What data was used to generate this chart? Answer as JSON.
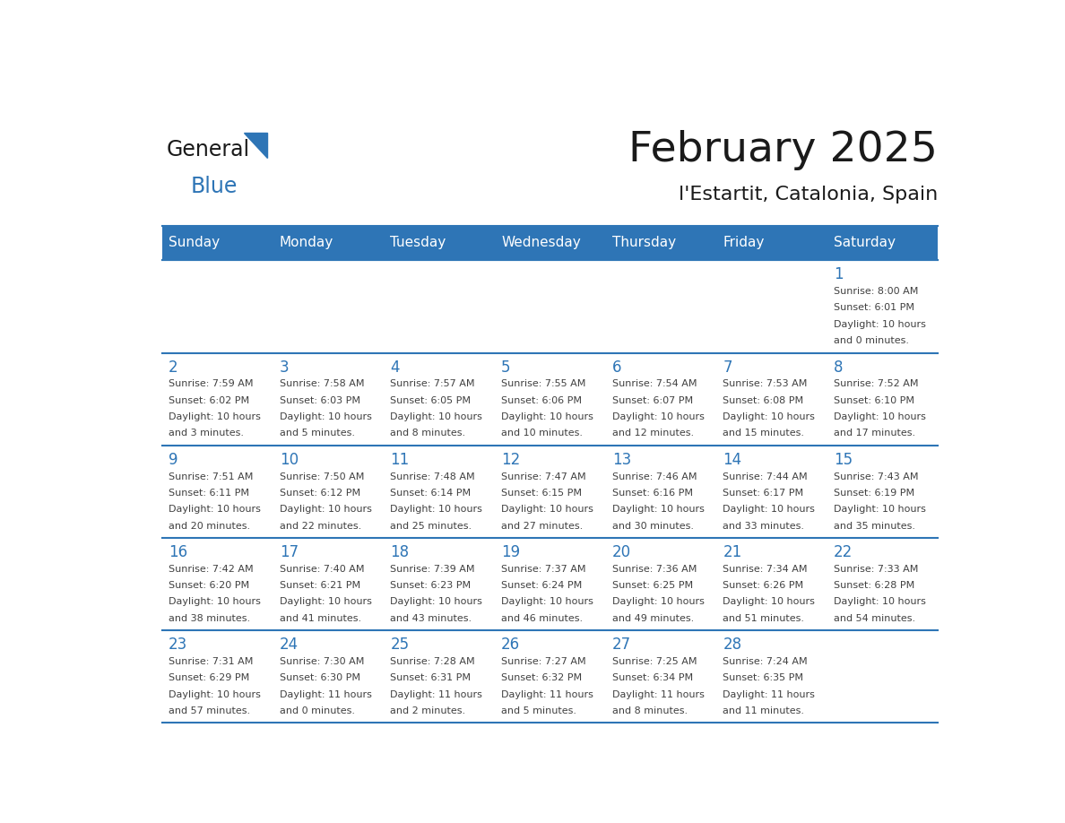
{
  "title": "February 2025",
  "subtitle": "l'Estartit, Catalonia, Spain",
  "days_of_week": [
    "Sunday",
    "Monday",
    "Tuesday",
    "Wednesday",
    "Thursday",
    "Friday",
    "Saturday"
  ],
  "header_bg": "#2E75B6",
  "header_text": "#FFFFFF",
  "cell_bg": "#FFFFFF",
  "border_color": "#2E75B6",
  "day_num_color": "#2E75B6",
  "info_color": "#404040",
  "title_color": "#1a1a1a",
  "subtitle_color": "#1a1a1a",
  "logo_general_color": "#1a1a1a",
  "logo_blue_color": "#2E75B6",
  "num_rows": 5,
  "num_cols": 7,
  "calendar_data": [
    {
      "day": 1,
      "row": 0,
      "col": 6,
      "sunrise": "8:00 AM",
      "sunset": "6:01 PM",
      "daylight_hours": 10,
      "daylight_minutes": 0
    },
    {
      "day": 2,
      "row": 1,
      "col": 0,
      "sunrise": "7:59 AM",
      "sunset": "6:02 PM",
      "daylight_hours": 10,
      "daylight_minutes": 3
    },
    {
      "day": 3,
      "row": 1,
      "col": 1,
      "sunrise": "7:58 AM",
      "sunset": "6:03 PM",
      "daylight_hours": 10,
      "daylight_minutes": 5
    },
    {
      "day": 4,
      "row": 1,
      "col": 2,
      "sunrise": "7:57 AM",
      "sunset": "6:05 PM",
      "daylight_hours": 10,
      "daylight_minutes": 8
    },
    {
      "day": 5,
      "row": 1,
      "col": 3,
      "sunrise": "7:55 AM",
      "sunset": "6:06 PM",
      "daylight_hours": 10,
      "daylight_minutes": 10
    },
    {
      "day": 6,
      "row": 1,
      "col": 4,
      "sunrise": "7:54 AM",
      "sunset": "6:07 PM",
      "daylight_hours": 10,
      "daylight_minutes": 12
    },
    {
      "day": 7,
      "row": 1,
      "col": 5,
      "sunrise": "7:53 AM",
      "sunset": "6:08 PM",
      "daylight_hours": 10,
      "daylight_minutes": 15
    },
    {
      "day": 8,
      "row": 1,
      "col": 6,
      "sunrise": "7:52 AM",
      "sunset": "6:10 PM",
      "daylight_hours": 10,
      "daylight_minutes": 17
    },
    {
      "day": 9,
      "row": 2,
      "col": 0,
      "sunrise": "7:51 AM",
      "sunset": "6:11 PM",
      "daylight_hours": 10,
      "daylight_minutes": 20
    },
    {
      "day": 10,
      "row": 2,
      "col": 1,
      "sunrise": "7:50 AM",
      "sunset": "6:12 PM",
      "daylight_hours": 10,
      "daylight_minutes": 22
    },
    {
      "day": 11,
      "row": 2,
      "col": 2,
      "sunrise": "7:48 AM",
      "sunset": "6:14 PM",
      "daylight_hours": 10,
      "daylight_minutes": 25
    },
    {
      "day": 12,
      "row": 2,
      "col": 3,
      "sunrise": "7:47 AM",
      "sunset": "6:15 PM",
      "daylight_hours": 10,
      "daylight_minutes": 27
    },
    {
      "day": 13,
      "row": 2,
      "col": 4,
      "sunrise": "7:46 AM",
      "sunset": "6:16 PM",
      "daylight_hours": 10,
      "daylight_minutes": 30
    },
    {
      "day": 14,
      "row": 2,
      "col": 5,
      "sunrise": "7:44 AM",
      "sunset": "6:17 PM",
      "daylight_hours": 10,
      "daylight_minutes": 33
    },
    {
      "day": 15,
      "row": 2,
      "col": 6,
      "sunrise": "7:43 AM",
      "sunset": "6:19 PM",
      "daylight_hours": 10,
      "daylight_minutes": 35
    },
    {
      "day": 16,
      "row": 3,
      "col": 0,
      "sunrise": "7:42 AM",
      "sunset": "6:20 PM",
      "daylight_hours": 10,
      "daylight_minutes": 38
    },
    {
      "day": 17,
      "row": 3,
      "col": 1,
      "sunrise": "7:40 AM",
      "sunset": "6:21 PM",
      "daylight_hours": 10,
      "daylight_minutes": 41
    },
    {
      "day": 18,
      "row": 3,
      "col": 2,
      "sunrise": "7:39 AM",
      "sunset": "6:23 PM",
      "daylight_hours": 10,
      "daylight_minutes": 43
    },
    {
      "day": 19,
      "row": 3,
      "col": 3,
      "sunrise": "7:37 AM",
      "sunset": "6:24 PM",
      "daylight_hours": 10,
      "daylight_minutes": 46
    },
    {
      "day": 20,
      "row": 3,
      "col": 4,
      "sunrise": "7:36 AM",
      "sunset": "6:25 PM",
      "daylight_hours": 10,
      "daylight_minutes": 49
    },
    {
      "day": 21,
      "row": 3,
      "col": 5,
      "sunrise": "7:34 AM",
      "sunset": "6:26 PM",
      "daylight_hours": 10,
      "daylight_minutes": 51
    },
    {
      "day": 22,
      "row": 3,
      "col": 6,
      "sunrise": "7:33 AM",
      "sunset": "6:28 PM",
      "daylight_hours": 10,
      "daylight_minutes": 54
    },
    {
      "day": 23,
      "row": 4,
      "col": 0,
      "sunrise": "7:31 AM",
      "sunset": "6:29 PM",
      "daylight_hours": 10,
      "daylight_minutes": 57
    },
    {
      "day": 24,
      "row": 4,
      "col": 1,
      "sunrise": "7:30 AM",
      "sunset": "6:30 PM",
      "daylight_hours": 11,
      "daylight_minutes": 0
    },
    {
      "day": 25,
      "row": 4,
      "col": 2,
      "sunrise": "7:28 AM",
      "sunset": "6:31 PM",
      "daylight_hours": 11,
      "daylight_minutes": 2
    },
    {
      "day": 26,
      "row": 4,
      "col": 3,
      "sunrise": "7:27 AM",
      "sunset": "6:32 PM",
      "daylight_hours": 11,
      "daylight_minutes": 5
    },
    {
      "day": 27,
      "row": 4,
      "col": 4,
      "sunrise": "7:25 AM",
      "sunset": "6:34 PM",
      "daylight_hours": 11,
      "daylight_minutes": 8
    },
    {
      "day": 28,
      "row": 4,
      "col": 5,
      "sunrise": "7:24 AM",
      "sunset": "6:35 PM",
      "daylight_hours": 11,
      "daylight_minutes": 11
    }
  ]
}
